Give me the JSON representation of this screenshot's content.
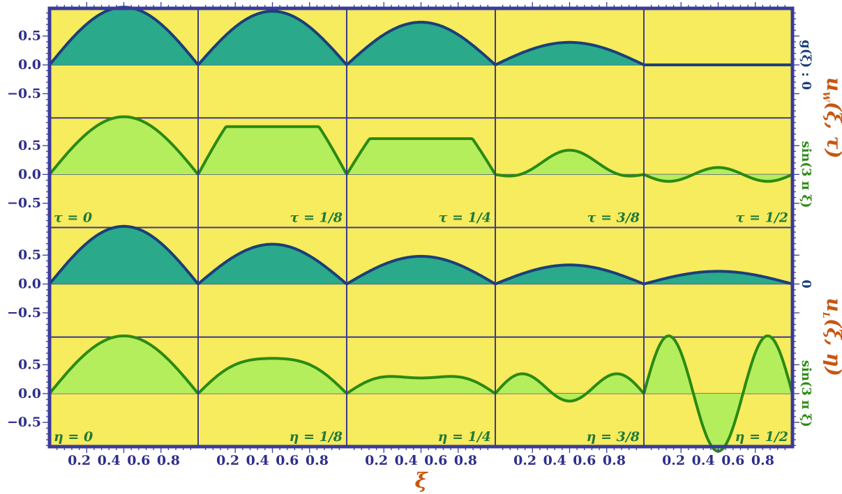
{
  "chart_data": {
    "type": "area",
    "xlabel": "ξ",
    "x_tick_labels": [
      "0.2",
      "0.4",
      "0.6",
      "0.8"
    ],
    "y_tick_labels": [
      "0.5",
      "0.0",
      "−0.5"
    ],
    "xlim": [
      0,
      1
    ],
    "ylim": [
      -0.92,
      0.98
    ],
    "colors": {
      "background": "#f7eb5e",
      "frame": "#3b3b9a",
      "grid_line": "#3b3b8c",
      "teal_fill": "#2aa98b",
      "teal_line": "#1a3f7a",
      "green_fill": "#b4ee5c",
      "green_line": "#2a8a12",
      "title_color": "#c8560f",
      "tick_color": "#2e2e8c",
      "label_color": "#1f7a3a"
    },
    "groups": [
      {
        "title_main": "u",
        "title_sub": "W",
        "title_args": "(ξ, τ)",
        "param": "τ",
        "rows": [
          {
            "side_label": "g(ξ) : 0",
            "side_color": "#1a3f7a",
            "series": [
              {
                "mode": "gauss",
                "amp": 1.0
              },
              {
                "mode": "gauss",
                "amp": 0.93
              },
              {
                "mode": "gauss",
                "amp": 0.74
              },
              {
                "mode": "gauss",
                "amp": 0.39
              },
              {
                "mode": "gauss",
                "amp": 0.0
              }
            ]
          },
          {
            "side_label": "sin(3 π ξ)",
            "side_color": "#2a8a12",
            "series": [
              {
                "mode": "plateau",
                "amp": 1.0,
                "p": 0.0
              },
              {
                "mode": "plateau",
                "amp": 0.83,
                "p": 0.5
              },
              {
                "mode": "plateau",
                "amp": 0.62,
                "p": 0.72
              },
              {
                "mode": "mixed",
                "a1": 0.28,
                "a3": -0.14
              },
              {
                "mode": "mixed",
                "a1": 0.0,
                "a3": -0.12
              }
            ]
          }
        ],
        "panel_labels": [
          "τ = 0",
          "τ = 1/8",
          "τ = 1/4",
          "τ = 3/8",
          "τ = 1/2"
        ]
      },
      {
        "title_main": "u",
        "title_sub": "L",
        "title_args": "(ξ, η)",
        "param": "η",
        "rows": [
          {
            "side_label": "0",
            "side_color": "#1a3f7a",
            "series": [
              {
                "mode": "gauss",
                "amp": 1.0
              },
              {
                "mode": "gauss",
                "amp": 0.69
              },
              {
                "mode": "gauss",
                "amp": 0.48
              },
              {
                "mode": "gauss",
                "amp": 0.33
              },
              {
                "mode": "gauss",
                "amp": 0.22
              }
            ]
          },
          {
            "side_label": "sin(3 π ξ)",
            "side_color": "#2a8a12",
            "series": [
              {
                "mode": "mixed",
                "a1": 1.0,
                "a3": 0.0
              },
              {
                "mode": "mixed",
                "a1": 0.66,
                "a3": 0.05
              },
              {
                "mode": "mixed",
                "a1": 0.34,
                "a3": 0.07
              },
              {
                "mode": "mixed",
                "a1": 0.14,
                "a3": 0.27
              },
              {
                "mode": "mixed",
                "a1": 0.0,
                "a3": 1.0
              }
            ]
          }
        ],
        "panel_labels": [
          "η = 0",
          "η = 1/8",
          "η = 1/4",
          "η = 3/8",
          "η = 1/2"
        ]
      }
    ]
  }
}
